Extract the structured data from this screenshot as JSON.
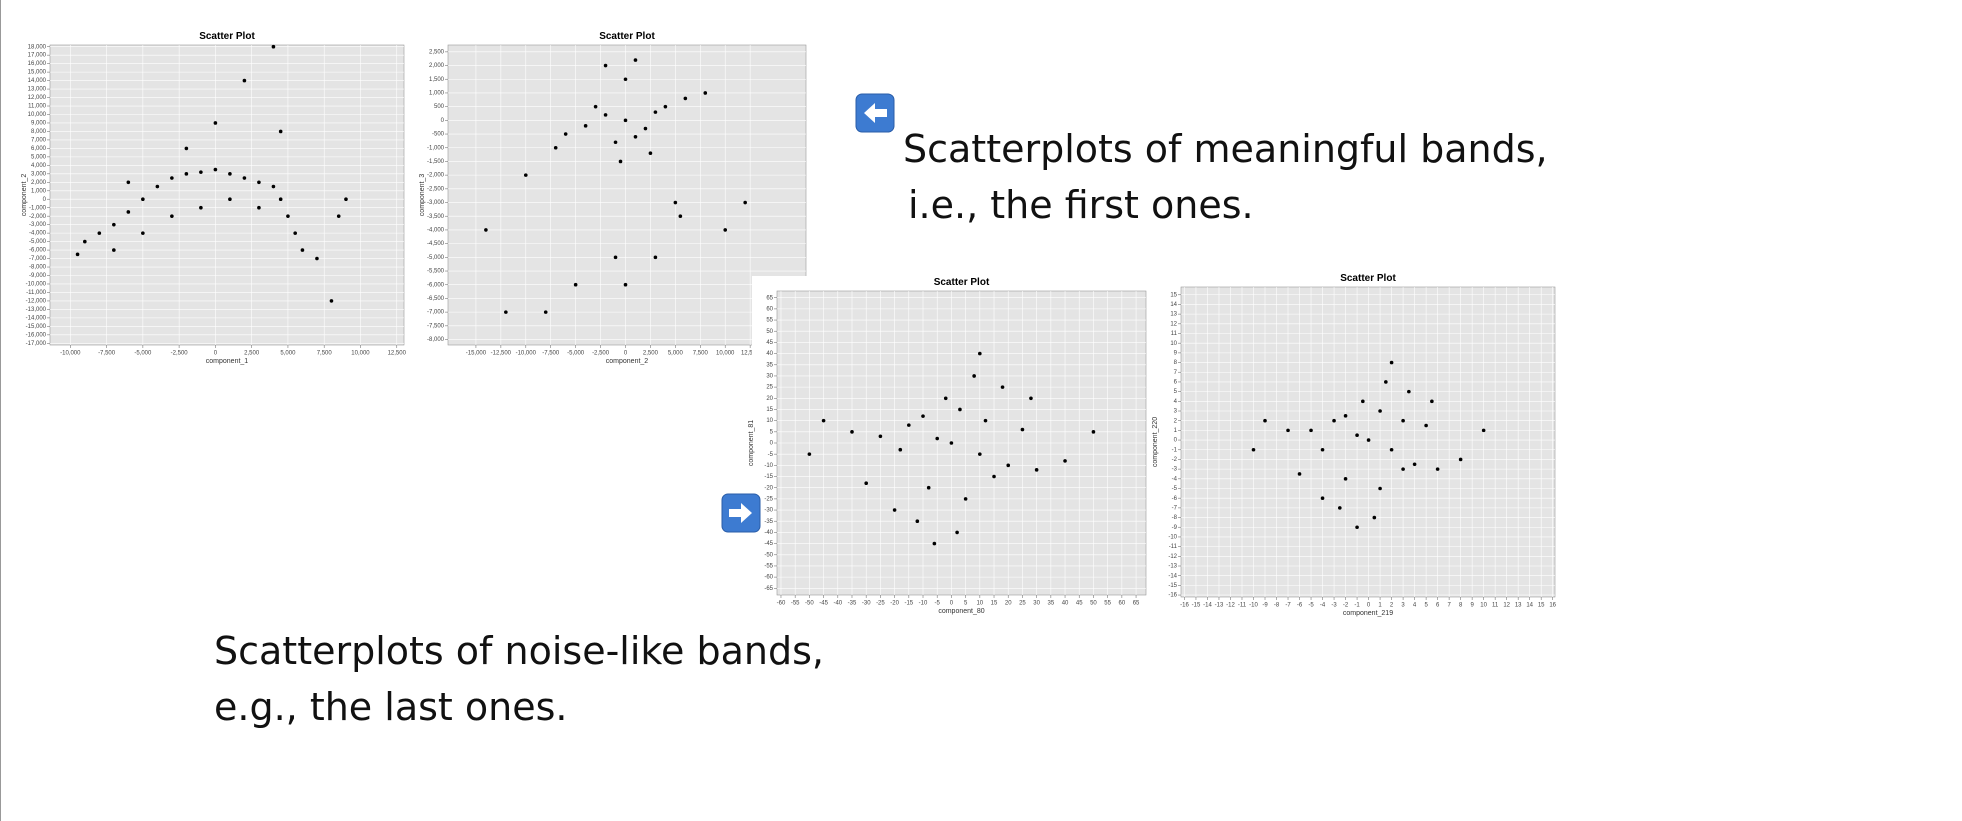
{
  "chart_data": [
    {
      "type": "scatter",
      "title": "Scatter Plot",
      "x_label": "component_1",
      "y_label": "component_2",
      "color": "#000000",
      "grid": true,
      "xlim": [
        -11400,
        13000
      ],
      "ylim": [
        -17200,
        18200
      ],
      "xticks": [
        {
          "value": -10000,
          "label": "-10,000"
        },
        {
          "value": -7500,
          "label": "-7,500"
        },
        {
          "value": -5000,
          "label": "-5,000"
        },
        {
          "value": -2500,
          "label": "-2,500"
        },
        0,
        {
          "value": 2500,
          "label": "2,500"
        },
        {
          "value": 5000,
          "label": "5,000"
        },
        {
          "value": 7500,
          "label": "7,500"
        },
        {
          "value": 10000,
          "label": "10,000"
        },
        {
          "value": 12500,
          "label": "12,500"
        }
      ],
      "yticks": [
        {
          "value": 18000,
          "label": "18,000"
        },
        {
          "value": 17000,
          "label": "17,000"
        },
        {
          "value": 16000,
          "label": "16,000"
        },
        {
          "value": 15000,
          "label": "15,000"
        },
        {
          "value": 14000,
          "label": "14,000"
        },
        {
          "value": 13000,
          "label": "13,000"
        },
        {
          "value": 12000,
          "label": "12,000"
        },
        {
          "value": 11000,
          "label": "11,000"
        },
        {
          "value": 10000,
          "label": "10,000"
        },
        {
          "value": 9000,
          "label": "9,000"
        },
        {
          "value": 8000,
          "label": "8,000"
        },
        {
          "value": 7000,
          "label": "7,000"
        },
        {
          "value": 6000,
          "label": "6,000"
        },
        {
          "value": 5000,
          "label": "5,000"
        },
        {
          "value": 4000,
          "label": "4,000"
        },
        {
          "value": 3000,
          "label": "3,000"
        },
        {
          "value": 2000,
          "label": "2,000"
        },
        {
          "value": 1000,
          "label": "1,000"
        },
        0,
        {
          "value": -1000,
          "label": "-1,000"
        },
        {
          "value": -2000,
          "label": "-2,000"
        },
        {
          "value": -3000,
          "label": "-3,000"
        },
        {
          "value": -4000,
          "label": "-4,000"
        },
        {
          "value": -5000,
          "label": "-5,000"
        },
        {
          "value": -6000,
          "label": "-6,000"
        },
        {
          "value": -7000,
          "label": "-7,000"
        },
        {
          "value": -8000,
          "label": "-8,000"
        },
        {
          "value": -9000,
          "label": "-9,000"
        },
        {
          "value": -10000,
          "label": "-10,000"
        },
        {
          "value": -11000,
          "label": "-11,000"
        },
        {
          "value": -12000,
          "label": "-12,000"
        },
        {
          "value": -13000,
          "label": "-13,000"
        },
        {
          "value": -14000,
          "label": "-14,000"
        },
        {
          "value": -15000,
          "label": "-15,000"
        },
        {
          "value": -16000,
          "label": "-16,000"
        },
        {
          "value": -17000,
          "label": "-17,000"
        }
      ],
      "x": [
        -9500,
        -9000,
        -8000,
        -7000,
        -6000,
        -5000,
        -4000,
        -3000,
        -2000,
        -1000,
        0,
        1000,
        2000,
        3000,
        4000,
        4500,
        5000,
        5500,
        6000,
        7000,
        -7000,
        -5000,
        -3000,
        -1000,
        1000,
        3000,
        4500,
        2000,
        4000,
        8500,
        9000,
        8000,
        -6000,
        -2000,
        0
      ],
      "y": [
        -6500,
        -5000,
        -4000,
        -3000,
        -1500,
        0,
        1500,
        2500,
        3000,
        3200,
        3500,
        3000,
        2500,
        2000,
        1500,
        0,
        -2000,
        -4000,
        -6000,
        -7000,
        -6000,
        -4000,
        -2000,
        -1000,
        0,
        -1000,
        8000,
        14000,
        18000,
        -2000,
        0,
        -12000,
        2000,
        6000,
        9000
      ]
    },
    {
      "type": "scatter",
      "title": "Scatter Plot",
      "x_label": "component_2",
      "y_label": "component_3",
      "color": "#000000",
      "grid": true,
      "xlim": [
        -17800,
        18100
      ],
      "ylim": [
        -8200,
        2750
      ],
      "xticks": [
        {
          "value": -15000,
          "label": "-15,000"
        },
        {
          "value": -12500,
          "label": "-12,500"
        },
        {
          "value": -10000,
          "label": "-10,000"
        },
        {
          "value": -7500,
          "label": "-7,500"
        },
        {
          "value": -5000,
          "label": "-5,000"
        },
        {
          "value": -2500,
          "label": "-2,500"
        },
        0,
        {
          "value": 2500,
          "label": "2,500"
        },
        {
          "value": 5000,
          "label": "5,000"
        },
        {
          "value": 7500,
          "label": "7,500"
        },
        {
          "value": 10000,
          "label": "10,000"
        },
        {
          "value": 12500,
          "label": "12,500"
        }
      ],
      "yticks": [
        {
          "value": 2500,
          "label": "2,500"
        },
        {
          "value": 2000,
          "label": "2,000"
        },
        {
          "value": 1500,
          "label": "1,500"
        },
        {
          "value": 1000,
          "label": "1,000"
        },
        500,
        0,
        -500,
        {
          "value": -1000,
          "label": "-1,000"
        },
        {
          "value": -1500,
          "label": "-1,500"
        },
        {
          "value": -2000,
          "label": "-2,000"
        },
        {
          "value": -2500,
          "label": "-2,500"
        },
        {
          "value": -3000,
          "label": "-3,000"
        },
        {
          "value": -3500,
          "label": "-3,500"
        },
        {
          "value": -4000,
          "label": "-4,000"
        },
        {
          "value": -4500,
          "label": "-4,500"
        },
        {
          "value": -5000,
          "label": "-5,000"
        },
        {
          "value": -5500,
          "label": "-5,500"
        },
        {
          "value": -6000,
          "label": "-6,000"
        },
        {
          "value": -6500,
          "label": "-6,500"
        },
        {
          "value": -7000,
          "label": "-7,000"
        },
        {
          "value": -7500,
          "label": "-7,500"
        },
        {
          "value": -8000,
          "label": "-8,000"
        }
      ],
      "x": [
        0,
        -2000,
        2000,
        -4000,
        4000,
        -6000,
        6000,
        8000,
        -1000,
        1000,
        -3000,
        3000,
        0,
        -2000,
        1000,
        -500,
        2500,
        5000,
        5500,
        -1000,
        0,
        -5000,
        -10000,
        -14000,
        -12000,
        -8000,
        10000,
        12000,
        3000,
        -7000
      ],
      "y": [
        0,
        200,
        -300,
        -200,
        500,
        -500,
        800,
        1000,
        -800,
        -600,
        500,
        300,
        1500,
        2000,
        2200,
        -1500,
        -1200,
        -3000,
        -3500,
        -5000,
        -6000,
        -6000,
        -2000,
        -4000,
        -7000,
        -7000,
        -4000,
        -3000,
        -5000,
        -1000
      ]
    },
    {
      "type": "scatter",
      "title": "Scatter Plot",
      "x_label": "component_80",
      "y_label": "component_81",
      "color": "#000000",
      "grid": true,
      "xlim": [
        -61.4,
        68.5
      ],
      "ylim": [
        -68,
        68
      ],
      "xticks": [
        -60,
        -55,
        -50,
        -45,
        -40,
        -35,
        -30,
        -25,
        -20,
        -15,
        -10,
        -5,
        0,
        5,
        10,
        15,
        20,
        25,
        30,
        35,
        40,
        45,
        50,
        55,
        60,
        65
      ],
      "yticks": [
        65,
        60,
        55,
        50,
        45,
        40,
        35,
        30,
        25,
        20,
        15,
        10,
        5,
        0,
        -5,
        -10,
        -15,
        -20,
        -25,
        -30,
        -35,
        -40,
        -45,
        -50,
        -55,
        -60,
        -65
      ],
      "x": [
        -5,
        10,
        -15,
        20,
        -25,
        3,
        -8,
        12,
        -18,
        25,
        30,
        -35,
        0,
        5,
        -2,
        15,
        -10,
        8,
        -20,
        40,
        -45,
        18,
        -12,
        2,
        -30,
        28,
        -6,
        50,
        -50,
        10
      ],
      "y": [
        2,
        -5,
        8,
        -10,
        3,
        15,
        -20,
        10,
        -3,
        6,
        -12,
        5,
        0,
        -25,
        20,
        -15,
        12,
        30,
        -30,
        -8,
        10,
        25,
        -35,
        -40,
        -18,
        20,
        -45,
        5,
        -5,
        40
      ]
    },
    {
      "type": "scatter",
      "title": "Scatter Plot",
      "x_label": "component_219",
      "y_label": "component_220",
      "color": "#000000",
      "grid": true,
      "xlim": [
        -16.3,
        16.2
      ],
      "ylim": [
        -16.2,
        15.8
      ],
      "xticks": [
        -16,
        -15,
        -14,
        -13,
        -12,
        -11,
        -10,
        -9,
        -8,
        -7,
        -6,
        -5,
        -4,
        -3,
        -2,
        -1,
        0,
        1,
        2,
        3,
        4,
        5,
        6,
        7,
        8,
        9,
        10,
        11,
        12,
        13,
        14,
        15,
        16
      ],
      "yticks": [
        15,
        14,
        13,
        12,
        11,
        10,
        9,
        8,
        7,
        6,
        5,
        4,
        3,
        2,
        1,
        0,
        -1,
        -2,
        -3,
        -4,
        -5,
        -6,
        -7,
        -8,
        -9,
        -10,
        -11,
        -12,
        -13,
        -14,
        -15,
        -16
      ],
      "x": [
        -1,
        2,
        -3,
        4,
        -5,
        1,
        -2,
        3,
        -4,
        5,
        6,
        -7,
        0,
        1,
        -0.5,
        3,
        -2,
        1.5,
        -4,
        8,
        -9,
        3.5,
        -2.5,
        0.5,
        -6,
        5.5,
        -1,
        10,
        -10,
        2
      ],
      "y": [
        0.5,
        -1,
        2,
        -2.5,
        1,
        3,
        -4,
        2,
        -1,
        1.5,
        -3,
        1,
        0,
        -5,
        4,
        -3,
        2.5,
        6,
        -6,
        -2,
        2,
        5,
        -7,
        -8,
        -3.5,
        4,
        -9,
        1,
        -1,
        8
      ]
    }
  ],
  "captions": [
    {
      "lines": [
        "Scatterplots of meaningful bands,",
        "i.e., the first ones."
      ]
    },
    {
      "lines": [
        "Scatterplots of noise-like bands,",
        "e.g., the last ones."
      ]
    }
  ]
}
